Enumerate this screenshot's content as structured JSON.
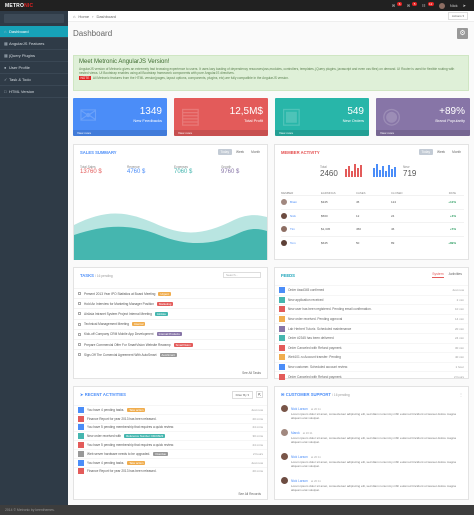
{
  "brand": {
    "logo_main": "METRO",
    "logo_accent": "NIC",
    "user": "Nick"
  },
  "topbar": {
    "badge1": "6",
    "badge2": "5",
    "badge3": "12"
  },
  "sidebar": {
    "items": [
      {
        "label": "Dashboard",
        "icon": "home-icon"
      },
      {
        "label": "AngularJS Features",
        "icon": "puzzle-icon"
      },
      {
        "label": "jQuery Plugins",
        "icon": "plug-icon"
      },
      {
        "label": "User Profile",
        "icon": "user-icon"
      },
      {
        "label": "Task & Todo",
        "icon": "check-icon"
      },
      {
        "label": "HTML Version",
        "icon": "code-icon"
      }
    ]
  },
  "breadcrumb": {
    "home": "Home",
    "current": "Dashboard",
    "actions": "Actions"
  },
  "page": {
    "title": "Dashboard"
  },
  "notice": {
    "title": "Meet Metronic AngularJS Version!",
    "text": "AngularJS version of Metronic gives an extremely fast browsing experience to users. It uses lazy loading of dependency resources(css,modules, controllers, templates, jQuery plugins, javascript and even css files) on demand. UI Router is used for flexible routing with nested views. UI Bootstrap enables using all Bootstrap framework components with pure AngularJS directives.",
    "badge": "NOTE",
    "note": "All Metronic features from the HTML version(pages, layout options, components, plugins, etc) are fully compatible in the AngularJS version."
  },
  "stats": [
    {
      "value": "1349",
      "label": "New Feedbacks",
      "more": "View more",
      "color": "#4b8df8"
    },
    {
      "value": "12,5M$",
      "label": "Total Profit",
      "more": "View more",
      "color": "#e35b5a"
    },
    {
      "value": "549",
      "label": "New Orders",
      "more": "View more",
      "color": "#28b6a9"
    },
    {
      "value": "+89%",
      "label": "Brand Popularity",
      "more": "View more",
      "color": "#8775a7"
    }
  ],
  "sales": {
    "title": "SALES SUMMARY",
    "pills": [
      "Today",
      "Week",
      "Month"
    ],
    "numbers": [
      {
        "label": "Total Sales",
        "value": "13760 $"
      },
      {
        "label": "Revenue",
        "value": "4760 $"
      },
      {
        "label": "Expenses",
        "value": "7060 $"
      },
      {
        "label": "Growth",
        "value": "9760 $"
      }
    ]
  },
  "member": {
    "title": "MEMBER ACTIVITY",
    "pills": [
      "Today",
      "Week",
      "Month"
    ],
    "totals": [
      {
        "label": "Total",
        "value": "2460"
      },
      {
        "label": "New",
        "value": "719"
      }
    ],
    "headers": [
      "MEMBER",
      "EARNINGS",
      "CASES",
      "CLOSED",
      "RATE"
    ],
    "rows": [
      {
        "name": "Brain",
        "earn": "$345",
        "cases": "45",
        "closed": "124",
        "rate": "+12%"
      },
      {
        "name": "Nick",
        "earn": "$560",
        "cases": "12",
        "closed": "24",
        "rate": "+3%"
      },
      {
        "name": "Tim",
        "earn": "$1,345",
        "cases": "450",
        "closed": "46",
        "rate": "+5%"
      },
      {
        "name": "Tom",
        "earn": "$645",
        "cases": "50",
        "closed": "89",
        "rate": "+89%"
      }
    ]
  },
  "tasks": {
    "title": "TASKS",
    "subtitle": "/ 16 pending",
    "search_placeholder": "Search...",
    "items": [
      {
        "text": "Present 2013 Year IPO Statistics at Board Meeting",
        "tag": "Urgent",
        "color": "#f0ad4e"
      },
      {
        "text": "Hold An Interview for Marketing Manager Position",
        "tag": "Marketing",
        "color": "#e35b5a"
      },
      {
        "text": "AirAsia Intranet System Project Internal Meeting",
        "tag": "AirAsia",
        "color": "#45b6af"
      },
      {
        "text": "Technical Management Meeting",
        "tag": "Internal",
        "color": "#f0ad4e"
      },
      {
        "text": "Kick-off Company CRM Mobile App Development",
        "tag": "Internal Products",
        "color": "#8775a7"
      },
      {
        "text": "Prepare Commercial Offer For SmartVision Website Rewamp",
        "tag": "SmartVision",
        "color": "#e35b5a"
      },
      {
        "text": "Sign-Off The Comercial Agreement With AutoSmart",
        "tag": "AutoSmart",
        "color": "#999999"
      }
    ],
    "see_all": "See All Tasks"
  },
  "feeds": {
    "title": "FEEDS",
    "tabs": [
      "System",
      "Activities"
    ],
    "items": [
      {
        "text": "Order #asd345 confirmed",
        "time": "Just now",
        "color": "#4b8df8"
      },
      {
        "text": "New application received",
        "time": "2 min",
        "color": "#45b6af"
      },
      {
        "text": "New user has been registered. Pending email confirmation.",
        "time": "10 min",
        "color": "#e35b5a"
      },
      {
        "text": "New order received. Pending approval",
        "time": "14 min",
        "color": "#f0ad4e"
      },
      {
        "text": "Lab Herbert Tuturiz. Scheduled maintenance",
        "time": "20 min",
        "color": "#8775a7"
      },
      {
        "text": "Order #2345 has been delivered",
        "time": "24 min",
        "color": "#45b6af"
      },
      {
        "text": "Order Canceled with Refund payment.",
        "time": "30 min",
        "color": "#e35b5a"
      },
      {
        "text": "Web101.ru Account transfer: Pending",
        "time": "40 min",
        "color": "#f0ad4e"
      },
      {
        "text": "New customer. Scheduled account review.",
        "time": "1 hour",
        "color": "#4b8df8"
      },
      {
        "text": "Order Canceled with Refund payment.",
        "time": "2 hours",
        "color": "#e35b5a"
      },
      {
        "text": "Order #554 has been shipped.",
        "time": "3 hours",
        "color": "#45b6af"
      }
    ]
  },
  "recent": {
    "title": "RECENT ACTIVITIES",
    "filter": "Filter By",
    "items": [
      {
        "text": "You have 4 pending tasks.",
        "tag": "Take action",
        "tagcolor": "#f0ad4e",
        "time": "Just now",
        "color": "#4b8df8"
      },
      {
        "text": "Finance Report for year 2013 has been released.",
        "tag": "",
        "tagcolor": "",
        "time": "20 mins",
        "color": "#e35b5a"
      },
      {
        "text": "You have 5 pending membership that requires a quick review.",
        "tag": "",
        "tagcolor": "",
        "time": "24 mins",
        "color": "#4b8df8"
      },
      {
        "text": "New order received with",
        "tag": "Reference Number: DR23923",
        "tagcolor": "#45b6af",
        "time": "30 mins",
        "color": "#45b6af"
      },
      {
        "text": "You have 5 pending membership that requires a quick review.",
        "tag": "",
        "tagcolor": "",
        "time": "24 mins",
        "color": "#e35b5a"
      },
      {
        "text": "Web server hardware needs to be upgraded.",
        "tag": "Overdue",
        "tagcolor": "#999999",
        "time": "2 hours",
        "color": "#999999"
      },
      {
        "text": "You have 4 pending tasks.",
        "tag": "Take action",
        "tagcolor": "#f0ad4e",
        "time": "Just now",
        "color": "#4b8df8"
      },
      {
        "text": "Finance Report for year 2013 has been released.",
        "tag": "",
        "tagcolor": "",
        "time": "20 mins",
        "color": "#e35b5a"
      }
    ],
    "see_all": "See All Records"
  },
  "support": {
    "title": "CUSTOMER SUPPORT",
    "subtitle": "/ 16 pending",
    "messages": [
      {
        "name": "Nick Larson",
        "at": "at 20:11",
        "body": "Lorem ipsum dolor sit amet, consectetuer adipiscing elit, sed diam nonummy nibh euismod tincidunt ut laoreet dolore magna aliquam erat volutpat."
      },
      {
        "name": "Marck",
        "at": "at 20:11",
        "body": "Lorem ipsum dolor sit amet, consectetuer adipiscing elit, sed diam nonummy nibh euismod tincidunt ut laoreet dolore magna aliquam erat volutpat."
      },
      {
        "name": "Nick Larson",
        "at": "at 20:11",
        "body": "Lorem ipsum dolor sit amet, consectetuer adipiscing elit, sed diam nonummy nibh euismod tincidunt ut laoreet dolore magna aliquam erat volutpat."
      },
      {
        "name": "Nick Larson",
        "at": "at 20:11",
        "body": "Lorem ipsum dolor sit amet, consectetuer adipiscing elit, sed diam nonummy nibh euismod tincidunt ut laoreet dolore magna aliquam erat volutpat."
      }
    ]
  },
  "footer": {
    "text": "2014 © Metronic by keenthemes."
  }
}
